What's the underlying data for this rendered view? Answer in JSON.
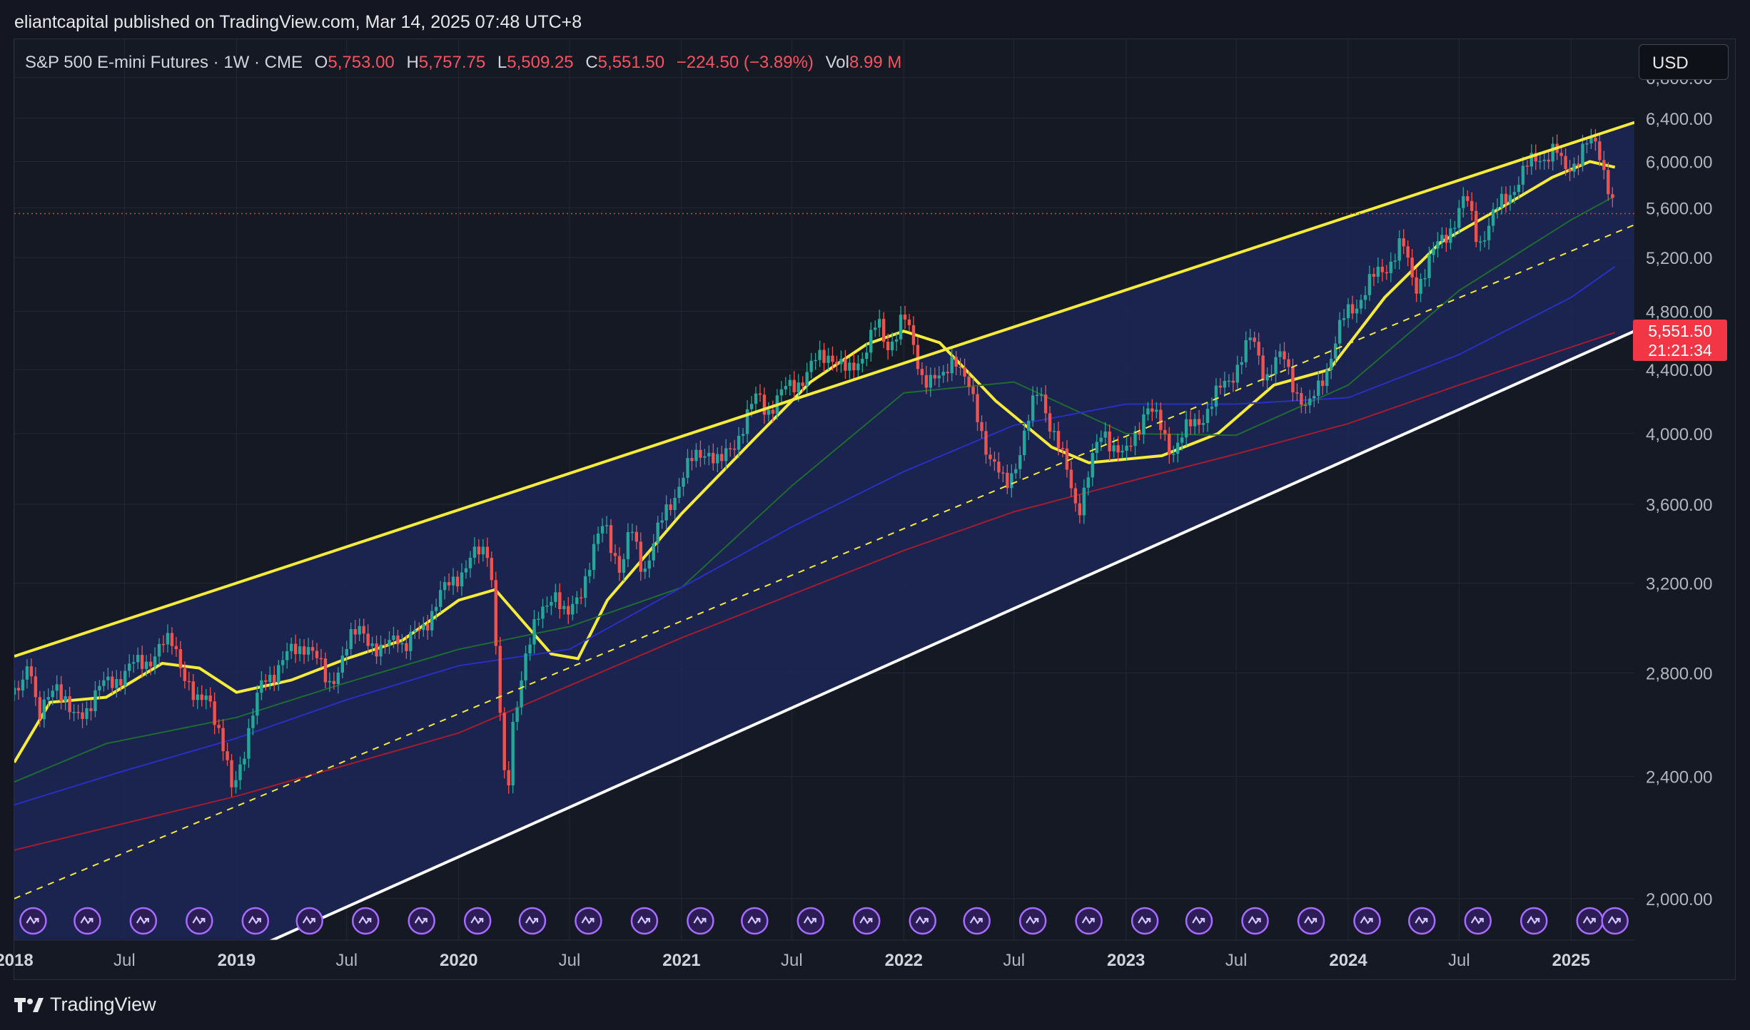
{
  "publish_note": "eliantcapital published on TradingView.com, Mar 14, 2025 07:48 UTC+8",
  "brand": {
    "name": "TradingView"
  },
  "currency": "USD",
  "symbol_line": {
    "symbol": "S&P 500 E-mini Futures · 1W · CME",
    "open_label": "O",
    "open": "5,753.00",
    "high_label": "H",
    "high": "5,757.75",
    "low_label": "L",
    "low": "5,509.25",
    "close_label": "C",
    "close": "5,551.50",
    "change": "−224.50 (−3.89%)",
    "vol_label": "Vol",
    "vol": "8.99 M"
  },
  "price_tag": {
    "price": "5,551.50",
    "countdown": "21:21:34"
  },
  "colors": {
    "up": "#26a69a",
    "down": "#ef5350",
    "channel": "#f5eb3b",
    "channel_fill": "#1c2756",
    "support": "#ffffff",
    "ma_fast": "#f5eb3b",
    "ma_green": "#1e6b32",
    "ma_blue": "#2a2ec2",
    "ma_red": "#a51c30",
    "current_price": "#f23645",
    "event_icon": "#a66bff"
  },
  "chart_data": {
    "type": "candlestick",
    "title": "S&P 500 E-mini Futures",
    "interval": "1W",
    "exchange": "CME",
    "y_axis": {
      "scale": "log",
      "ticks": [
        "2,000.00",
        "2,400.00",
        "2,800.00",
        "3,200.00",
        "3,600.00",
        "4,000.00",
        "4,400.00",
        "4,800.00",
        "5,200.00",
        "5,600.00",
        "6,000.00",
        "6,400.00",
        "6,800.00"
      ],
      "range": [
        1880,
        7200
      ]
    },
    "x_axis": {
      "range": [
        "2018-01-01",
        "2025-04-15"
      ],
      "ticks": [
        {
          "date": "2018-01-01",
          "label": "2018",
          "major": true
        },
        {
          "date": "2018-07-01",
          "label": "Jul",
          "major": false
        },
        {
          "date": "2019-01-01",
          "label": "2019",
          "major": true
        },
        {
          "date": "2019-07-01",
          "label": "Jul",
          "major": false
        },
        {
          "date": "2020-01-01",
          "label": "2020",
          "major": true
        },
        {
          "date": "2020-07-01",
          "label": "Jul",
          "major": false
        },
        {
          "date": "2021-01-01",
          "label": "2021",
          "major": true
        },
        {
          "date": "2021-07-01",
          "label": "Jul",
          "major": false
        },
        {
          "date": "2022-01-01",
          "label": "2022",
          "major": true
        },
        {
          "date": "2022-07-01",
          "label": "Jul",
          "major": false
        },
        {
          "date": "2023-01-01",
          "label": "2023",
          "major": true
        },
        {
          "date": "2023-07-01",
          "label": "Jul",
          "major": false
        },
        {
          "date": "2024-01-01",
          "label": "2024",
          "major": true
        },
        {
          "date": "2024-07-01",
          "label": "Jul",
          "major": false
        },
        {
          "date": "2025-01-01",
          "label": "2025",
          "major": true
        }
      ]
    },
    "price_path": [
      [
        "2018-01-01",
        2700
      ],
      [
        "2018-01-26",
        2880
      ],
      [
        "2018-02-09",
        2580
      ],
      [
        "2018-03-09",
        2790
      ],
      [
        "2018-04-06",
        2600
      ],
      [
        "2018-05-18",
        2720
      ],
      [
        "2018-06-15",
        2780
      ],
      [
        "2018-07-27",
        2840
      ],
      [
        "2018-09-21",
        2940
      ],
      [
        "2018-10-26",
        2650
      ],
      [
        "2018-11-16",
        2740
      ],
      [
        "2018-12-24",
        2350
      ],
      [
        "2019-02-15",
        2775
      ],
      [
        "2019-04-26",
        2940
      ],
      [
        "2019-05-31",
        2750
      ],
      [
        "2019-07-26",
        3020
      ],
      [
        "2019-08-23",
        2850
      ],
      [
        "2019-09-20",
        3000
      ],
      [
        "2019-10-04",
        2890
      ],
      [
        "2019-12-27",
        3240
      ],
      [
        "2020-02-21",
        3390
      ],
      [
        "2020-03-20",
        2240
      ],
      [
        "2020-03-27",
        2540
      ],
      [
        "2020-04-17",
        2870
      ],
      [
        "2020-06-05",
        3190
      ],
      [
        "2020-06-26",
        3010
      ],
      [
        "2020-08-28",
        3500
      ],
      [
        "2020-09-25",
        3250
      ],
      [
        "2020-10-09",
        3470
      ],
      [
        "2020-10-30",
        3270
      ],
      [
        "2020-12-31",
        3750
      ],
      [
        "2021-02-12",
        3930
      ],
      [
        "2021-03-05",
        3800
      ],
      [
        "2021-05-07",
        4230
      ],
      [
        "2021-05-21",
        4150
      ],
      [
        "2021-07-30",
        4400
      ],
      [
        "2021-09-03",
        4530
      ],
      [
        "2021-10-01",
        4350
      ],
      [
        "2021-11-19",
        4700
      ],
      [
        "2021-12-03",
        4540
      ],
      [
        "2021-12-31",
        4770
      ],
      [
        "2022-01-28",
        4390
      ],
      [
        "2022-03-04",
        4300
      ],
      [
        "2022-03-25",
        4540
      ],
      [
        "2022-05-20",
        3900
      ],
      [
        "2022-06-17",
        3670
      ],
      [
        "2022-08-12",
        4280
      ],
      [
        "2022-10-14",
        3580
      ],
      [
        "2022-11-25",
        4030
      ],
      [
        "2022-12-30",
        3840
      ],
      [
        "2023-02-03",
        4180
      ],
      [
        "2023-03-17",
        3910
      ],
      [
        "2023-05-26",
        4200
      ],
      [
        "2023-07-28",
        4600
      ],
      [
        "2023-08-18",
        4370
      ],
      [
        "2023-09-15",
        4480
      ],
      [
        "2023-10-27",
        4120
      ],
      [
        "2023-12-29",
        4780
      ],
      [
        "2024-03-29",
        5300
      ],
      [
        "2024-04-19",
        4980
      ],
      [
        "2024-07-12",
        5670
      ],
      [
        "2024-08-02",
        5330
      ],
      [
        "2024-09-27",
        5780
      ],
      [
        "2024-11-08",
        6050
      ],
      [
        "2024-12-06",
        6100
      ],
      [
        "2024-12-20",
        5900
      ],
      [
        "2025-01-24",
        6140
      ],
      [
        "2025-02-14",
        6130
      ],
      [
        "2025-03-07",
        5750
      ],
      [
        "2025-03-14",
        5551.5
      ]
    ],
    "moving_averages": [
      {
        "id": "ma_fast",
        "color": "#f5eb3b",
        "points": [
          [
            "2018-01-01",
            2450
          ],
          [
            "2018-03-01",
            2680
          ],
          [
            "2018-06-01",
            2700
          ],
          [
            "2018-09-01",
            2840
          ],
          [
            "2018-11-01",
            2820
          ],
          [
            "2019-01-01",
            2720
          ],
          [
            "2019-04-01",
            2770
          ],
          [
            "2019-07-01",
            2860
          ],
          [
            "2019-10-01",
            2940
          ],
          [
            "2020-01-01",
            3120
          ],
          [
            "2020-03-01",
            3170
          ],
          [
            "2020-06-01",
            2880
          ],
          [
            "2020-07-15",
            2860
          ],
          [
            "2020-09-01",
            3120
          ],
          [
            "2021-01-01",
            3550
          ],
          [
            "2021-05-01",
            3970
          ],
          [
            "2021-08-01",
            4320
          ],
          [
            "2021-11-01",
            4570
          ],
          [
            "2022-01-01",
            4660
          ],
          [
            "2022-03-01",
            4580
          ],
          [
            "2022-06-01",
            4200
          ],
          [
            "2022-09-01",
            3920
          ],
          [
            "2022-11-01",
            3830
          ],
          [
            "2023-03-01",
            3870
          ],
          [
            "2023-06-01",
            4000
          ],
          [
            "2023-09-01",
            4300
          ],
          [
            "2023-12-01",
            4400
          ],
          [
            "2024-03-01",
            4900
          ],
          [
            "2024-06-01",
            5320
          ],
          [
            "2024-09-01",
            5580
          ],
          [
            "2024-12-01",
            5860
          ],
          [
            "2025-02-01",
            6000
          ],
          [
            "2025-03-14",
            5950
          ]
        ]
      },
      {
        "id": "ma_green",
        "color": "#1e6b32",
        "points": [
          [
            "2018-01-01",
            2380
          ],
          [
            "2018-06-01",
            2520
          ],
          [
            "2019-01-01",
            2620
          ],
          [
            "2019-07-01",
            2760
          ],
          [
            "2020-01-01",
            2900
          ],
          [
            "2020-07-01",
            3000
          ],
          [
            "2021-01-01",
            3180
          ],
          [
            "2021-07-01",
            3700
          ],
          [
            "2022-01-01",
            4250
          ],
          [
            "2022-07-01",
            4320
          ],
          [
            "2023-01-01",
            4000
          ],
          [
            "2023-07-01",
            3990
          ],
          [
            "2024-01-01",
            4300
          ],
          [
            "2024-07-01",
            4950
          ],
          [
            "2025-01-01",
            5500
          ],
          [
            "2025-03-14",
            5700
          ]
        ]
      },
      {
        "id": "ma_blue",
        "color": "#2a2ec2",
        "points": [
          [
            "2018-01-01",
            2300
          ],
          [
            "2018-07-01",
            2420
          ],
          [
            "2019-01-01",
            2540
          ],
          [
            "2019-07-01",
            2690
          ],
          [
            "2020-01-01",
            2830
          ],
          [
            "2020-07-01",
            2900
          ],
          [
            "2021-01-01",
            3180
          ],
          [
            "2021-07-01",
            3480
          ],
          [
            "2022-01-01",
            3780
          ],
          [
            "2022-07-01",
            4050
          ],
          [
            "2023-01-01",
            4180
          ],
          [
            "2023-07-01",
            4180
          ],
          [
            "2024-01-01",
            4220
          ],
          [
            "2024-07-01",
            4500
          ],
          [
            "2025-01-01",
            4900
          ],
          [
            "2025-03-14",
            5130
          ]
        ]
      },
      {
        "id": "ma_red",
        "color": "#a51c30",
        "points": [
          [
            "2018-01-01",
            2150
          ],
          [
            "2019-01-01",
            2330
          ],
          [
            "2020-01-01",
            2560
          ],
          [
            "2021-01-01",
            2950
          ],
          [
            "2022-01-01",
            3360
          ],
          [
            "2022-07-01",
            3560
          ],
          [
            "2023-01-01",
            3720
          ],
          [
            "2023-07-01",
            3880
          ],
          [
            "2024-01-01",
            4060
          ],
          [
            "2024-07-01",
            4300
          ],
          [
            "2025-01-01",
            4550
          ],
          [
            "2025-03-14",
            4650
          ]
        ]
      }
    ],
    "channel": {
      "upper": [
        [
          "2018-01-01",
          2870
        ],
        [
          "2025-04-15",
          6360
        ]
      ],
      "lower": [
        [
          "2019-03-01",
          1880
        ],
        [
          "2025-04-15",
          4660
        ]
      ],
      "mid": [
        [
          "2018-01-01",
          2000
        ],
        [
          "2025-04-15",
          5460
        ]
      ]
    },
    "current_price": 5551.5,
    "event_markers": [
      "2018-02-01",
      "2018-05-01",
      "2018-08-01",
      "2018-11-01",
      "2019-02-01",
      "2019-05-01",
      "2019-08-01",
      "2019-11-01",
      "2020-02-01",
      "2020-05-01",
      "2020-08-01",
      "2020-11-01",
      "2021-02-01",
      "2021-05-01",
      "2021-08-01",
      "2021-11-01",
      "2022-02-01",
      "2022-05-01",
      "2022-08-01",
      "2022-11-01",
      "2023-02-01",
      "2023-05-01",
      "2023-08-01",
      "2023-11-01",
      "2024-02-01",
      "2024-05-01",
      "2024-08-01",
      "2024-11-01",
      "2025-02-01",
      "2025-03-14"
    ]
  }
}
